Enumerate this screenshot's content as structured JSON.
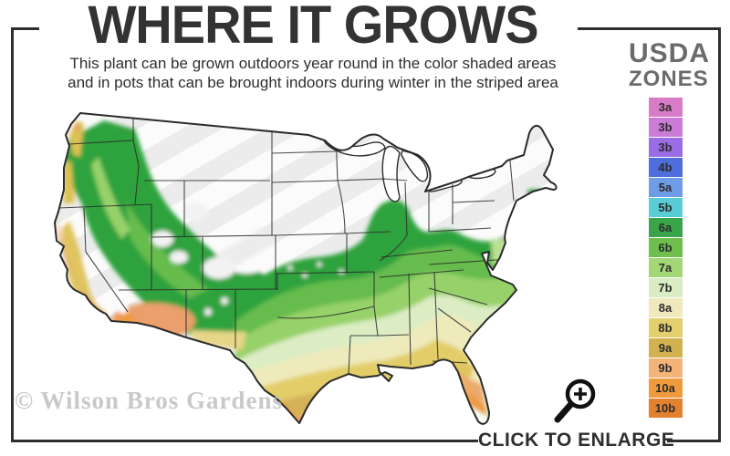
{
  "header": {
    "title": "WHERE IT GROWS",
    "subtitle_line1": "This plant can be grown outdoors year round in the color shaded areas",
    "subtitle_line2": "and in pots that can be brought indoors during winter in the striped area"
  },
  "legend": {
    "title_line1": "USDA",
    "title_line2": "ZONES",
    "zones": [
      {
        "label": "3a",
        "color": "#d97cc7"
      },
      {
        "label": "3b",
        "color": "#cb7cd6"
      },
      {
        "label": "3b",
        "color": "#9a6ce6"
      },
      {
        "label": "4b",
        "color": "#4f6edb"
      },
      {
        "label": "5a",
        "color": "#6f9ce6"
      },
      {
        "label": "5b",
        "color": "#59cdd5"
      },
      {
        "label": "6a",
        "color": "#3aa44a"
      },
      {
        "label": "6b",
        "color": "#6fbf4e"
      },
      {
        "label": "7a",
        "color": "#a3d776"
      },
      {
        "label": "7b",
        "color": "#d9ecc3"
      },
      {
        "label": "8a",
        "color": "#efe9bd"
      },
      {
        "label": "8b",
        "color": "#e3cf6c"
      },
      {
        "label": "9a",
        "color": "#d2b150"
      },
      {
        "label": "9b",
        "color": "#f4b377"
      },
      {
        "label": "10a",
        "color": "#f09a3e"
      },
      {
        "label": "10b",
        "color": "#e2822f"
      }
    ]
  },
  "map": {
    "watermark": "© Wilson Bros Gardens"
  },
  "footer": {
    "enlarge_label": "CLICK TO ENLARGE"
  },
  "icons": {
    "enlarge": "magnifier-plus"
  }
}
